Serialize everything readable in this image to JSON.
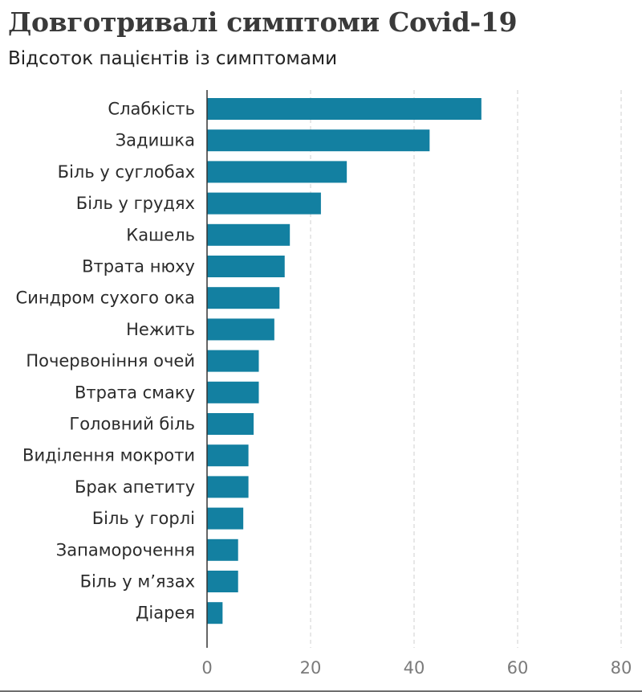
{
  "chart_data": {
    "type": "bar",
    "orientation": "horizontal",
    "title": "Довготривалі симптоми Covid-19",
    "subtitle": "Відсоток пацієнтів із симптомами",
    "categories": [
      "Слабкість",
      "Задишка",
      "Біль у суглобах",
      "Біль у грудях",
      "Кашель",
      "Втрата нюху",
      "Синдром сухого ока",
      "Нежить",
      "Почервоніння очей",
      "Втрата смаку",
      "Головний біль",
      "Виділення мокроти",
      "Брак апетиту",
      "Біль у горлі",
      "Запаморочення",
      "Біль у м’язах",
      "Діарея"
    ],
    "values": [
      53,
      43,
      27,
      22,
      16,
      15,
      14,
      13,
      10,
      10,
      9,
      8,
      8,
      7,
      6,
      6,
      3
    ],
    "xlim": [
      0,
      80
    ],
    "xticks": [
      0,
      20,
      40,
      60,
      80
    ],
    "grid": "vertical-dashed",
    "bar_color": "#1380a1"
  }
}
